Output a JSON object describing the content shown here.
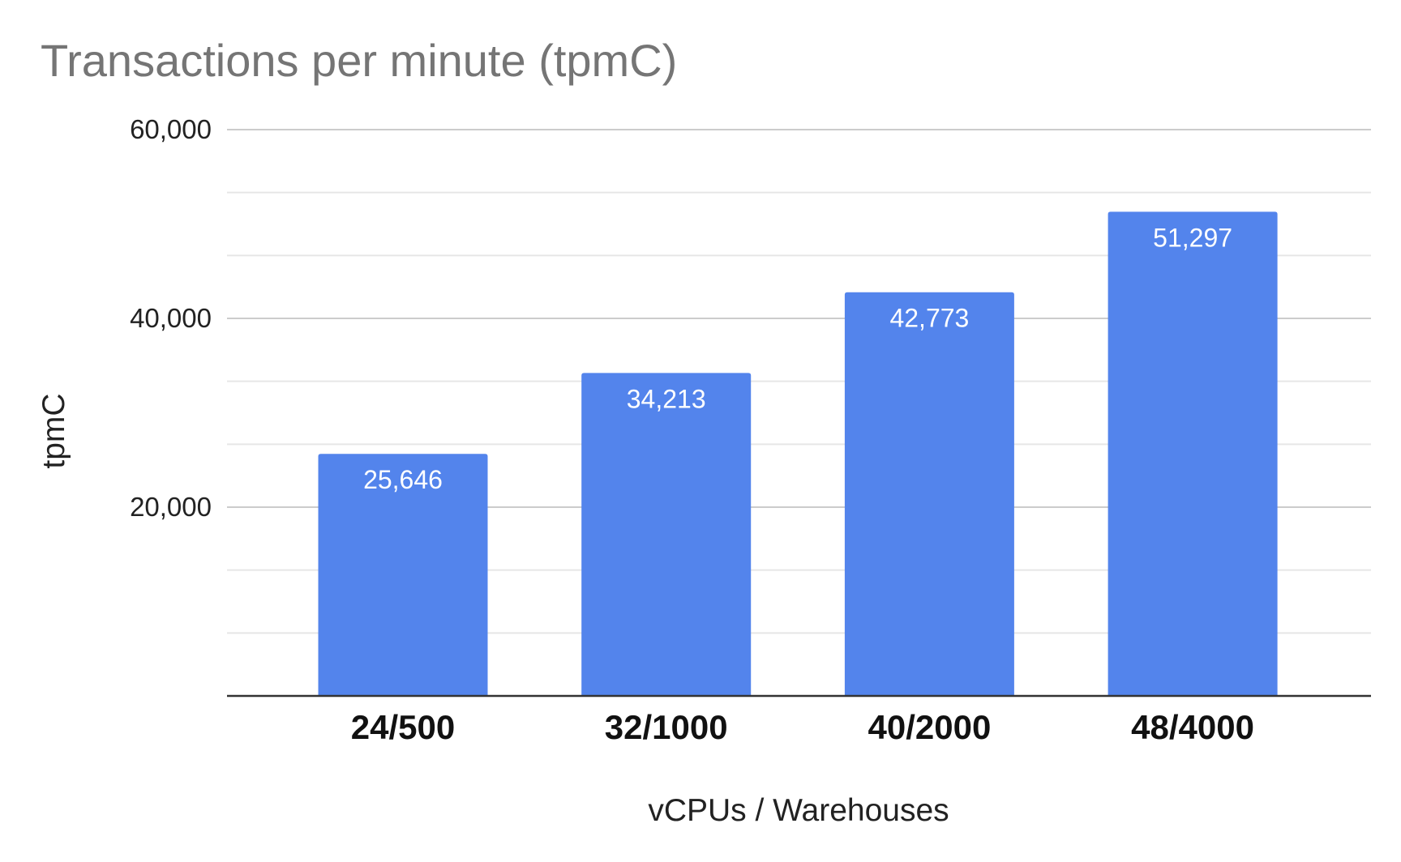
{
  "chart_data": {
    "type": "bar",
    "title": "Transactions per minute (tpmC)",
    "xlabel": "vCPUs / Warehouses",
    "ylabel": "tpmC",
    "categories": [
      "24/500",
      "32/1000",
      "40/2000",
      "48/4000"
    ],
    "values": [
      25646,
      34213,
      42773,
      51297
    ],
    "data_labels": [
      "25,646",
      "34,213",
      "42,773",
      "51,297"
    ],
    "ylim": [
      0,
      60000
    ],
    "yticks": [
      20000,
      40000,
      60000
    ],
    "ytick_labels": [
      "20,000",
      "40,000",
      "60,000"
    ],
    "minor_gridlines_per_major": 3,
    "grid": true,
    "legend": "none",
    "bar_color": "#5384EC"
  }
}
